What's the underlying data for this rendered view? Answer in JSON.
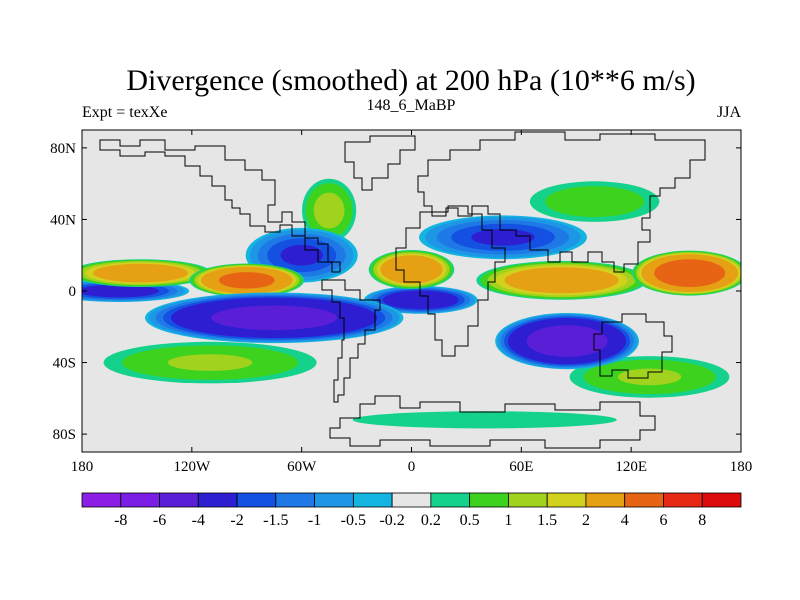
{
  "chart_data": {
    "type": "heatmap",
    "title": "Divergence (smoothed) at 200 hPa (10**6 m/s)",
    "left_string": "Expt = texXe",
    "center_string": "148_6_MaBP",
    "right_string": "JJA",
    "x_range": [
      -180,
      180
    ],
    "y_range": [
      -90,
      90
    ],
    "x_ticks": [
      {
        "value": -180,
        "label": "180"
      },
      {
        "value": -120,
        "label": "120W"
      },
      {
        "value": -60,
        "label": "60W"
      },
      {
        "value": 0,
        "label": "0"
      },
      {
        "value": 60,
        "label": "60E"
      },
      {
        "value": 120,
        "label": "120E"
      },
      {
        "value": 180,
        "label": "180"
      }
    ],
    "y_ticks": [
      {
        "value": 80,
        "label": "80N"
      },
      {
        "value": 40,
        "label": "40N"
      },
      {
        "value": 0,
        "label": "0"
      },
      {
        "value": -40,
        "label": "40S"
      },
      {
        "value": -80,
        "label": "80S"
      }
    ],
    "colorbar": {
      "labels": [
        "-8",
        "-6",
        "-4",
        "-2",
        "-1.5",
        "-1",
        "-0.5",
        "-0.2",
        "0.2",
        "0.5",
        "1",
        "1.5",
        "2",
        "4",
        "6",
        "8"
      ],
      "colors": [
        "#8c1ee6",
        "#7a1ee6",
        "#5a1ed7",
        "#2d1ed2",
        "#1450e1",
        "#1e78e6",
        "#1e96e6",
        "#14b4e1",
        "#e6e6e6",
        "#14d28c",
        "#3cd21e",
        "#a0d21e",
        "#d2d21e",
        "#e6a014",
        "#e66414",
        "#e62814",
        "#dc0a0a"
      ]
    },
    "field_features": [
      {
        "lon": -90,
        "lat": 6,
        "sx": 20,
        "sy": 6,
        "value": 4.5
      },
      {
        "lon": -148,
        "lat": 10,
        "sx": 25,
        "sy": 5,
        "value": 3.0
      },
      {
        "lon": 0,
        "lat": 12,
        "sx": 15,
        "sy": 7,
        "value": 3.5
      },
      {
        "lon": 82,
        "lat": 6,
        "sx": 30,
        "sy": 7,
        "value": 3.0
      },
      {
        "lon": 152,
        "lat": 10,
        "sx": 20,
        "sy": 8,
        "value": 5.5
      },
      {
        "lon": -160,
        "lat": 0,
        "sx": 25,
        "sy": 4,
        "value": -2.5
      },
      {
        "lon": -75,
        "lat": -15,
        "sx": 45,
        "sy": 9,
        "value": -4.5
      },
      {
        "lon": 5,
        "lat": -5,
        "sx": 20,
        "sy": 5,
        "value": -3.0
      },
      {
        "lon": 85,
        "lat": -28,
        "sx": 25,
        "sy": 10,
        "value": -5.0
      },
      {
        "lon": -60,
        "lat": 20,
        "sx": 20,
        "sy": 10,
        "value": -2.0
      },
      {
        "lon": 50,
        "lat": 30,
        "sx": 30,
        "sy": 8,
        "value": -2.0
      },
      {
        "lon": -110,
        "lat": -40,
        "sx": 40,
        "sy": 8,
        "value": 1.0
      },
      {
        "lon": 130,
        "lat": -48,
        "sx": 30,
        "sy": 8,
        "value": 1.0
      },
      {
        "lon": -45,
        "lat": 45,
        "sx": 10,
        "sy": 12,
        "value": 1.2
      },
      {
        "lon": 100,
        "lat": 50,
        "sx": 25,
        "sy": 8,
        "value": 0.8
      },
      {
        "lon": 40,
        "lat": -72,
        "sx": 60,
        "sy": 4,
        "value": 0.4
      }
    ]
  }
}
